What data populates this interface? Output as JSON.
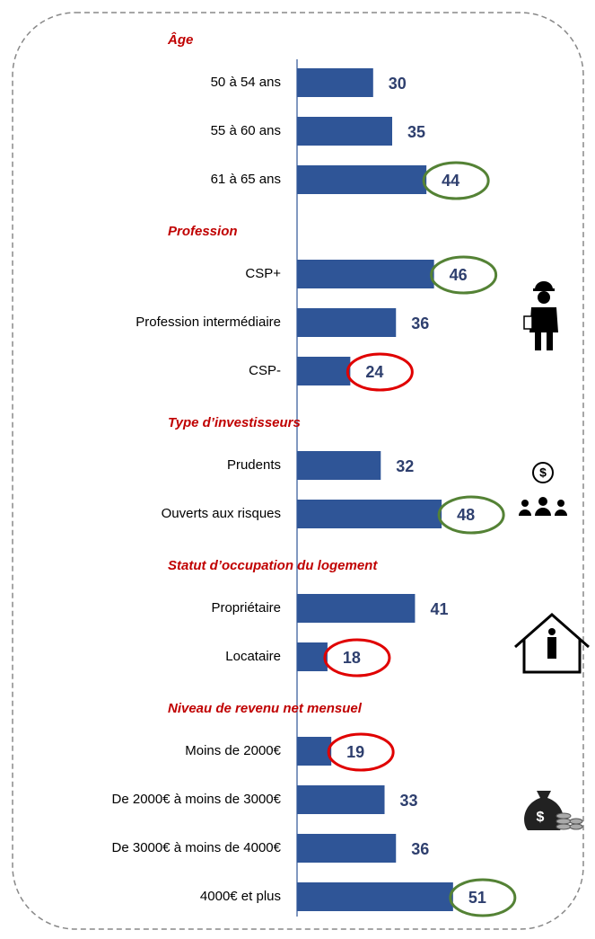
{
  "chart_data": {
    "type": "bar",
    "orientation": "horizontal",
    "color": "#2f5597",
    "label_color": "#2e3f6e",
    "xlim": [
      10,
      60
    ],
    "groups": [
      {
        "title": "Âge",
        "categories": [
          "50 à 54 ans",
          "55 à 60 ans",
          "61 à 65 ans"
        ],
        "values": [
          30,
          35,
          44
        ],
        "highlight_colors": [
          null,
          null,
          "#548235"
        ]
      },
      {
        "title": "Profession",
        "categories": [
          "CSP+",
          "Profession intermédiaire",
          "CSP-"
        ],
        "values": [
          46,
          36,
          24
        ],
        "highlight_colors": [
          "#548235",
          null,
          "#e00000"
        ]
      },
      {
        "title": "Type d’investisseurs",
        "categories": [
          "Prudents",
          "Ouverts aux risques"
        ],
        "values": [
          32,
          48
        ],
        "highlight_colors": [
          null,
          "#548235"
        ]
      },
      {
        "title": "Statut d’occupation du logement",
        "categories": [
          "Propriétaire",
          "Locataire"
        ],
        "values": [
          41,
          18
        ],
        "highlight_colors": [
          null,
          "#e00000"
        ]
      },
      {
        "title": "Niveau de revenu net mensuel",
        "categories": [
          "Moins de 2000€",
          "De 2000€ à moins de 3000€",
          "De 3000€ à moins de 4000€",
          "4000€ et plus"
        ],
        "values": [
          19,
          33,
          36,
          51
        ],
        "highlight_colors": [
          "#e00000",
          null,
          null,
          "#548235"
        ]
      }
    ]
  }
}
